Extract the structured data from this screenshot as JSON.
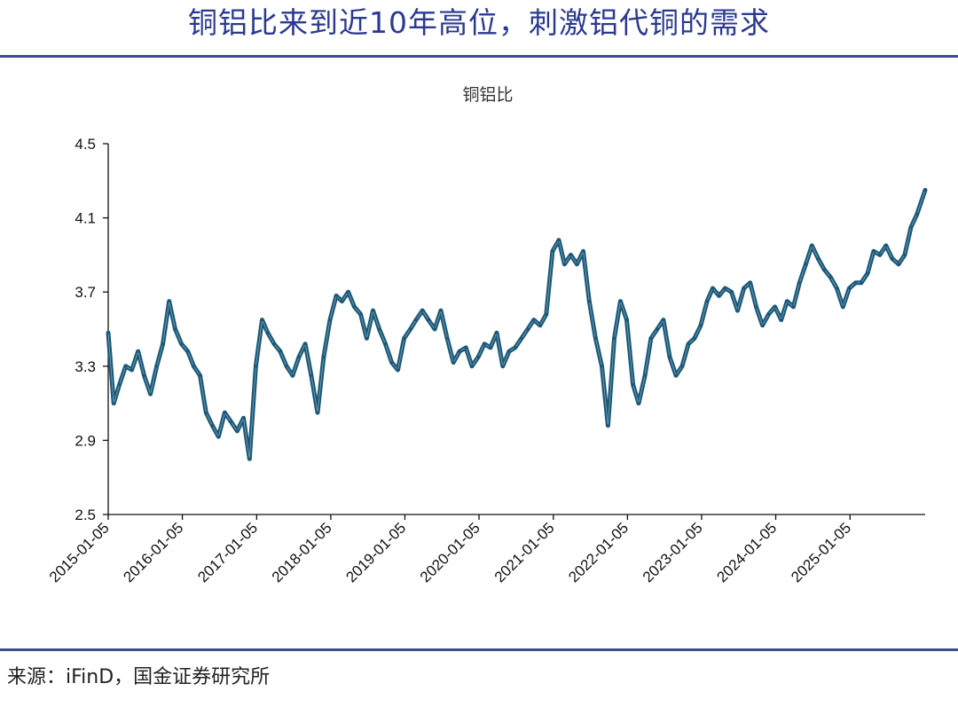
{
  "header": {
    "headline": "铜铝比来到近10年高位，刺激铝代铜的需求"
  },
  "footer": {
    "source": "来源：iFinD，国金证券研究所"
  },
  "colors": {
    "series_line": "#1b5878",
    "rule": "#3c4a93",
    "headline": "#2b3a8f"
  },
  "chart_data": {
    "type": "line",
    "title": "铜铝比",
    "xlabel": "",
    "ylabel": "",
    "ylim": [
      2.5,
      4.5
    ],
    "y_ticks": [
      "2.5",
      "2.9",
      "3.3",
      "3.7",
      "4.1",
      "4.5"
    ],
    "x_ticks": [
      "2015-01-05",
      "2016-01-05",
      "2017-01-05",
      "2018-01-05",
      "2019-01-05",
      "2020-01-05",
      "2021-01-05",
      "2022-01-05",
      "2023-01-05",
      "2024-01-05",
      "2025-01-05"
    ],
    "xlim": [
      "2015-01-05",
      "2026-01-10"
    ],
    "grid": false,
    "legend": "none",
    "series": [
      {
        "x": [
          "2015-01-05",
          "2015-02-01",
          "2015-03-01",
          "2015-04-01",
          "2015-05-01",
          "2015-06-01",
          "2015-07-01",
          "2015-08-01",
          "2015-09-01",
          "2015-10-01",
          "2015-11-01",
          "2015-12-01",
          "2016-01-01",
          "2016-02-01",
          "2016-03-01",
          "2016-04-01",
          "2016-05-01",
          "2016-06-01",
          "2016-07-01",
          "2016-08-01",
          "2016-09-01",
          "2016-10-01",
          "2016-11-01",
          "2016-12-01",
          "2017-01-01",
          "2017-02-01",
          "2017-03-01",
          "2017-04-01",
          "2017-05-01",
          "2017-06-01",
          "2017-07-01",
          "2017-08-01",
          "2017-09-01",
          "2017-10-01",
          "2017-11-01",
          "2017-12-01",
          "2018-01-01",
          "2018-02-01",
          "2018-03-01",
          "2018-04-01",
          "2018-05-01",
          "2018-06-01",
          "2018-07-01",
          "2018-08-01",
          "2018-09-01",
          "2018-10-01",
          "2018-11-01",
          "2018-12-01",
          "2019-01-01",
          "2019-02-01",
          "2019-03-01",
          "2019-04-01",
          "2019-05-01",
          "2019-06-01",
          "2019-07-01",
          "2019-08-01",
          "2019-09-01",
          "2019-10-01",
          "2019-11-01",
          "2019-12-01",
          "2020-01-01",
          "2020-02-01",
          "2020-03-01",
          "2020-04-01",
          "2020-05-01",
          "2020-06-01",
          "2020-07-01",
          "2020-08-01",
          "2020-09-01",
          "2020-10-01",
          "2020-11-01",
          "2020-12-01",
          "2021-01-01",
          "2021-02-01",
          "2021-03-01",
          "2021-04-01",
          "2021-05-01",
          "2021-06-01",
          "2021-07-01",
          "2021-08-01",
          "2021-09-01",
          "2021-10-01",
          "2021-11-01",
          "2021-12-01",
          "2022-01-01",
          "2022-02-01",
          "2022-03-01",
          "2022-04-01",
          "2022-05-01",
          "2022-06-01",
          "2022-07-01",
          "2022-08-01",
          "2022-09-01",
          "2022-10-01",
          "2022-11-01",
          "2022-12-01",
          "2023-01-01",
          "2023-02-01",
          "2023-03-01",
          "2023-04-01",
          "2023-05-01",
          "2023-06-01",
          "2023-07-01",
          "2023-08-01",
          "2023-09-01",
          "2023-10-01",
          "2023-11-01",
          "2023-12-01",
          "2024-01-01",
          "2024-02-01",
          "2024-03-01",
          "2024-04-01",
          "2024-05-01",
          "2024-06-01",
          "2024-07-01",
          "2024-08-01",
          "2024-09-01",
          "2024-10-01",
          "2024-11-01",
          "2024-12-01",
          "2025-01-01",
          "2025-02-01",
          "2025-03-01",
          "2025-04-01",
          "2025-05-01",
          "2025-06-01",
          "2025-07-01",
          "2025-08-01",
          "2025-09-01",
          "2025-10-01",
          "2025-11-01",
          "2025-12-01",
          "2026-01-10"
        ],
        "values": [
          3.48,
          3.1,
          3.2,
          3.3,
          3.28,
          3.38,
          3.25,
          3.15,
          3.3,
          3.42,
          3.65,
          3.5,
          3.42,
          3.38,
          3.3,
          3.25,
          3.05,
          2.98,
          2.92,
          3.05,
          3.0,
          2.95,
          3.02,
          2.8,
          3.3,
          3.55,
          3.48,
          3.42,
          3.38,
          3.3,
          3.25,
          3.35,
          3.42,
          3.25,
          3.05,
          3.35,
          3.55,
          3.68,
          3.65,
          3.7,
          3.62,
          3.58,
          3.45,
          3.6,
          3.5,
          3.42,
          3.32,
          3.28,
          3.45,
          3.5,
          3.55,
          3.6,
          3.55,
          3.5,
          3.6,
          3.45,
          3.32,
          3.38,
          3.4,
          3.3,
          3.35,
          3.42,
          3.4,
          3.48,
          3.3,
          3.38,
          3.4,
          3.45,
          3.5,
          3.55,
          3.52,
          3.58,
          3.92,
          3.98,
          3.85,
          3.9,
          3.85,
          3.92,
          3.65,
          3.45,
          3.3,
          2.98,
          3.45,
          3.65,
          3.55,
          3.2,
          3.1,
          3.25,
          3.45,
          3.5,
          3.55,
          3.35,
          3.25,
          3.3,
          3.42,
          3.45,
          3.52,
          3.65,
          3.72,
          3.68,
          3.72,
          3.7,
          3.6,
          3.72,
          3.75,
          3.62,
          3.52,
          3.58,
          3.62,
          3.55,
          3.65,
          3.62,
          3.75,
          3.85,
          3.95,
          3.88,
          3.82,
          3.78,
          3.72,
          3.62,
          3.72,
          3.75,
          3.75,
          3.8,
          3.92,
          3.9,
          3.95,
          3.88,
          3.85,
          3.9,
          4.05,
          4.12,
          4.25
        ]
      }
    ]
  }
}
